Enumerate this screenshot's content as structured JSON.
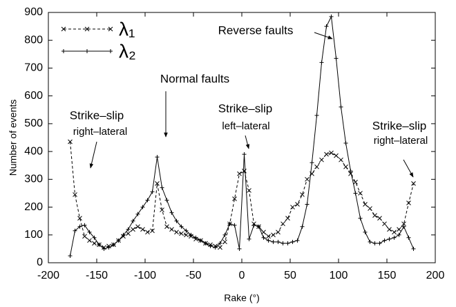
{
  "chart_data": {
    "type": "line",
    "xlabel": "Rake (°)",
    "ylabel": "Number of events",
    "xlim": [
      -200,
      200
    ],
    "xticks": [
      -200,
      -150,
      -100,
      -50,
      0,
      50,
      100,
      150,
      200
    ],
    "ylim": [
      0,
      900
    ],
    "yticks": [
      0,
      100,
      200,
      300,
      400,
      500,
      600,
      700,
      800,
      900
    ],
    "legend": "upper left",
    "x": [
      -177.5,
      -172.5,
      -167.5,
      -162.5,
      -157.5,
      -152.5,
      -147.5,
      -142.5,
      -137.5,
      -132.5,
      -127.5,
      -122.5,
      -117.5,
      -112.5,
      -107.5,
      -102.5,
      -97.5,
      -92.5,
      -87.5,
      -82.5,
      -77.5,
      -72.5,
      -67.5,
      -62.5,
      -57.5,
      -52.5,
      -47.5,
      -42.5,
      -37.5,
      -32.5,
      -27.5,
      -22.5,
      -17.5,
      -12.5,
      -7.5,
      -2.5,
      2.5,
      7.5,
      12.5,
      17.5,
      22.5,
      27.5,
      32.5,
      37.5,
      42.5,
      47.5,
      52.5,
      57.5,
      62.5,
      67.5,
      72.5,
      77.5,
      82.5,
      87.5,
      92.5,
      97.5,
      102.5,
      107.5,
      112.5,
      117.5,
      122.5,
      127.5,
      132.5,
      137.5,
      142.5,
      147.5,
      152.5,
      157.5,
      162.5,
      167.5,
      172.5,
      177.5
    ],
    "series": [
      {
        "name": "λ₁",
        "color": "#000000",
        "line_style": "dashed",
        "marker": "x",
        "values": [
          435,
          245,
          160,
          95,
          80,
          70,
          65,
          55,
          60,
          65,
          80,
          95,
          105,
          120,
          130,
          120,
          110,
          115,
          285,
          190,
          130,
          120,
          110,
          105,
          100,
          95,
          85,
          80,
          70,
          65,
          60,
          55,
          75,
          140,
          230,
          320,
          330,
          260,
          140,
          130,
          110,
          95,
          100,
          110,
          140,
          160,
          200,
          210,
          245,
          300,
          320,
          345,
          370,
          390,
          395,
          385,
          370,
          345,
          320,
          290,
          250,
          210,
          195,
          170,
          160,
          140,
          120,
          110,
          120,
          140,
          215,
          285
        ]
      },
      {
        "name": "λ₂",
        "color": "#000000",
        "line_style": "solid",
        "marker": "+",
        "values": [
          25,
          115,
          130,
          135,
          110,
          90,
          65,
          50,
          55,
          65,
          80,
          100,
          120,
          150,
          175,
          200,
          225,
          255,
          380,
          270,
          225,
          180,
          150,
          130,
          115,
          100,
          90,
          80,
          70,
          60,
          55,
          70,
          100,
          140,
          135,
          50,
          390,
          85,
          135,
          130,
          90,
          80,
          75,
          75,
          70,
          70,
          75,
          80,
          130,
          210,
          360,
          530,
          720,
          850,
          885,
          735,
          560,
          430,
          330,
          250,
          160,
          110,
          75,
          70,
          70,
          80,
          85,
          90,
          100,
          130,
          90,
          50
        ]
      }
    ],
    "annotations": [
      {
        "lines": [
          "Reverse faults"
        ]
      },
      {
        "lines": [
          "Normal faults"
        ]
      },
      {
        "lines": [
          "Strike–slip",
          "right–lateral"
        ]
      },
      {
        "lines": [
          "Strike–slip",
          "left–lateral"
        ]
      },
      {
        "lines": [
          "Strike–slip",
          "right–lateral"
        ]
      }
    ]
  }
}
